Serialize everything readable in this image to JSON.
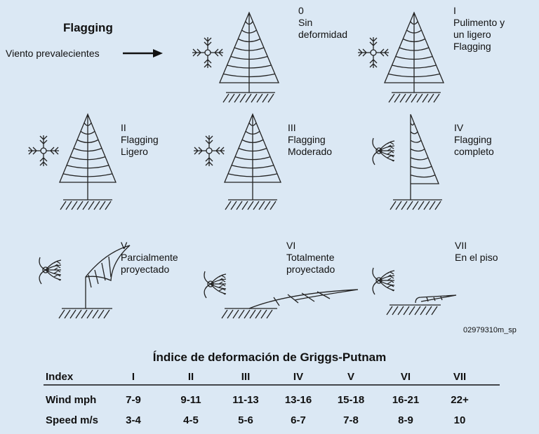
{
  "header": {
    "title": "Flagging",
    "wind_label": "Viento prevalecientes"
  },
  "stages": [
    {
      "lines": [
        "0",
        "Sin",
        "deformidad"
      ]
    },
    {
      "lines": [
        "I",
        "Pulimento y",
        "un ligero",
        "Flagging"
      ]
    },
    {
      "lines": [
        "II",
        "Flagging",
        "Ligero"
      ]
    },
    {
      "lines": [
        "III",
        "Flagging",
        "Moderado"
      ]
    },
    {
      "lines": [
        "IV",
        "Flagging",
        "completo"
      ]
    },
    {
      "lines": [
        "V",
        "Parcialmente",
        "proyectado"
      ]
    },
    {
      "lines": [
        "VI",
        "Totalmente",
        "proyectado"
      ]
    },
    {
      "lines": [
        "VII",
        "En el piso"
      ]
    }
  ],
  "code": "02979310m_sp",
  "table": {
    "title": "Índice de deformación de Griggs-Putnam",
    "header": [
      "Index",
      "I",
      "II",
      "III",
      "IV",
      "V",
      "VI",
      "VII"
    ],
    "rows": [
      [
        "Wind mph",
        "7-9",
        "9-11",
        "11-13",
        "13-16",
        "15-18",
        "16-21",
        "22+"
      ],
      [
        "Speed m/s",
        "3-4",
        "4-5",
        "5-6",
        "6-7",
        "7-8",
        "8-9",
        "10"
      ]
    ]
  }
}
